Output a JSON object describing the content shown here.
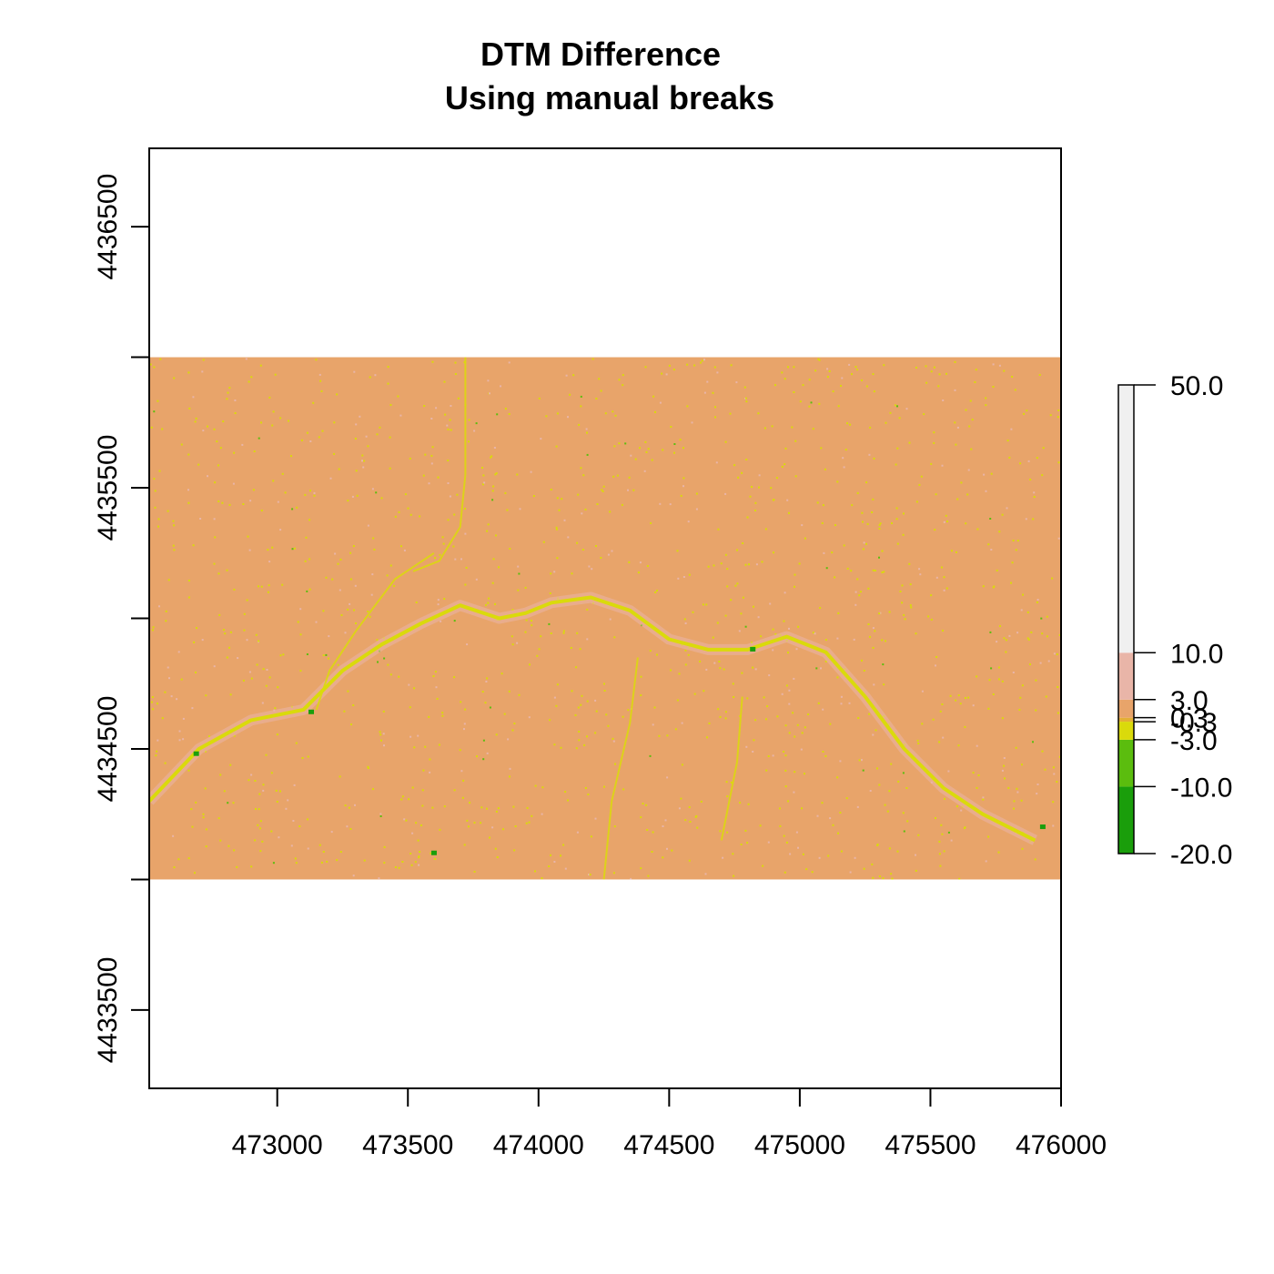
{
  "chart_data": {
    "type": "heatmap",
    "title": "DTM Difference",
    "subtitle": "Using manual breaks",
    "xlabel": "",
    "ylabel": "",
    "xlim": [
      472510,
      476000
    ],
    "ylim": [
      4433200,
      4436800
    ],
    "raster_extent": {
      "x": [
        472510,
        476000
      ],
      "y": [
        4434000,
        4436000
      ]
    },
    "x_ticks": [
      473000,
      473500,
      474000,
      474500,
      475000,
      475500,
      476000
    ],
    "x_tick_labels": [
      "473000",
      "473500",
      "474000",
      "474500",
      "475000",
      "475500",
      "476000"
    ],
    "y_ticks": [
      4433500,
      4434000,
      4434500,
      4435000,
      4435500,
      4436000,
      4436500
    ],
    "y_tick_labels": [
      "4433500",
      "",
      "4434500",
      "",
      "4435500",
      "",
      "4436500"
    ],
    "dominant_class": "0.3 to 3.0",
    "legend": {
      "position": "right",
      "breaks": [
        -20.0,
        -10.0,
        -3.0,
        -0.3,
        0.3,
        3.0,
        10.0,
        50.0
      ],
      "break_labels": [
        "-20.0",
        "-10.0",
        "-3.0",
        "-0.3",
        "0.3",
        "3.0",
        "10.0",
        "50.0"
      ],
      "colors": [
        "#1a9e0b",
        "#5bbd0e",
        "#dada0b",
        "#e4af35",
        "#e8a46a",
        "#e9b5a8",
        "#f0f0f0"
      ]
    },
    "features": {
      "river_main": [
        [
          472510,
          4434300
        ],
        [
          472700,
          4434500
        ],
        [
          472900,
          4434610
        ],
        [
          473100,
          4434650
        ],
        [
          473250,
          4434800
        ],
        [
          473400,
          4434900
        ],
        [
          473550,
          4434980
        ],
        [
          473700,
          4435050
        ],
        [
          473850,
          4435000
        ],
        [
          473950,
          4435020
        ],
        [
          474050,
          4435060
        ],
        [
          474200,
          4435080
        ],
        [
          474350,
          4435030
        ],
        [
          474500,
          4434920
        ],
        [
          474650,
          4434880
        ],
        [
          474800,
          4434880
        ],
        [
          474950,
          4434930
        ],
        [
          475100,
          4434870
        ],
        [
          475250,
          4434700
        ],
        [
          475400,
          4434500
        ],
        [
          475550,
          4434350
        ],
        [
          475700,
          4434250
        ],
        [
          475900,
          4434150
        ]
      ],
      "tributary_north": [
        [
          473520,
          4435180
        ],
        [
          473620,
          4435220
        ],
        [
          473700,
          4435350
        ],
        [
          473720,
          4435550
        ],
        [
          473720,
          4435800
        ],
        [
          473720,
          4436000
        ]
      ],
      "tributary_west": [
        [
          473150,
          4434650
        ],
        [
          473200,
          4434800
        ],
        [
          473300,
          4434950
        ],
        [
          473450,
          4435150
        ],
        [
          473600,
          4435250
        ]
      ],
      "tributary_south": [
        [
          474250,
          4434000
        ],
        [
          474280,
          4434300
        ],
        [
          474350,
          4434600
        ],
        [
          474380,
          4434850
        ]
      ],
      "tributary_east": [
        [
          474700,
          4434150
        ],
        [
          474760,
          4434450
        ],
        [
          474780,
          4434700
        ]
      ]
    }
  }
}
